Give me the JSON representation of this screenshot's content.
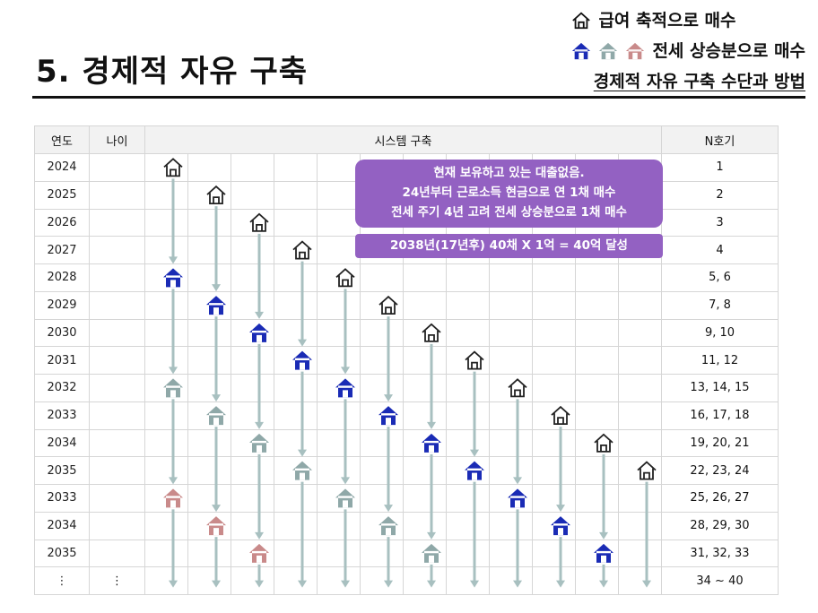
{
  "page": {
    "title": "5. 경제적 자유 구축",
    "legend": {
      "gift_label": "급여 축적으로 매수",
      "jeonse_label": "전세 상승분으로 매수",
      "subtitle": "경제적 자유 구축 수단과 방법"
    }
  },
  "colors": {
    "gift": "#ffffff",
    "jeonse_blue": "#1a2bb5",
    "jeonse_gray": "#8fa8a8",
    "jeonse_pink": "#c98a8a",
    "arrow": "#a8c0c0",
    "callout": "#9361c2"
  },
  "table": {
    "headers": {
      "year": "연도",
      "age": "나이",
      "system": "시스템 구축",
      "count": "N호기"
    },
    "rows": [
      {
        "year": "2024",
        "age": "",
        "count": "1"
      },
      {
        "year": "2025",
        "age": "",
        "count": "2"
      },
      {
        "year": "2026",
        "age": "",
        "count": "3"
      },
      {
        "year": "2027",
        "age": "",
        "count": "4"
      },
      {
        "year": "2028",
        "age": "",
        "count": "5, 6"
      },
      {
        "year": "2029",
        "age": "",
        "count": "7, 8"
      },
      {
        "year": "2030",
        "age": "",
        "count": "9, 10"
      },
      {
        "year": "2031",
        "age": "",
        "count": "11, 12"
      },
      {
        "year": "2032",
        "age": "",
        "count": "13, 14, 15"
      },
      {
        "year": "2033",
        "age": "",
        "count": "16, 17, 18"
      },
      {
        "year": "2034",
        "age": "",
        "count": "19, 20, 21"
      },
      {
        "year": "2035",
        "age": "",
        "count": "22, 23, 24"
      },
      {
        "year": "2033",
        "age": "",
        "count": "25, 26, 27"
      },
      {
        "year": "2034",
        "age": "",
        "count": "28, 29, 30"
      },
      {
        "year": "2035",
        "age": "",
        "count": "31, 32, 33"
      },
      {
        "year": "⋮",
        "age": "⋮",
        "count": "34 ~ 40"
      }
    ]
  },
  "callout": {
    "line1": "현재 보유하고 있는 대출없음.",
    "line2": "24년부터 근로소득 현금으로 연 1채 매수",
    "line3": "전세 주기 4년 고려 전세 상승분으로 1채 매수",
    "goal": "2038년(17년후) 40채 X 1억 = 40억 달성"
  },
  "houses": [
    {
      "row": 0,
      "col": 0,
      "type": "gift"
    },
    {
      "row": 1,
      "col": 1,
      "type": "gift"
    },
    {
      "row": 2,
      "col": 2,
      "type": "gift"
    },
    {
      "row": 3,
      "col": 3,
      "type": "gift"
    },
    {
      "row": 4,
      "col": 0,
      "type": "blue"
    },
    {
      "row": 4,
      "col": 4,
      "type": "gift"
    },
    {
      "row": 5,
      "col": 1,
      "type": "blue"
    },
    {
      "row": 5,
      "col": 5,
      "type": "gift"
    },
    {
      "row": 6,
      "col": 2,
      "type": "blue"
    },
    {
      "row": 6,
      "col": 6,
      "type": "gift"
    },
    {
      "row": 7,
      "col": 3,
      "type": "blue"
    },
    {
      "row": 7,
      "col": 7,
      "type": "gift"
    },
    {
      "row": 8,
      "col": 0,
      "type": "gray"
    },
    {
      "row": 8,
      "col": 4,
      "type": "blue"
    },
    {
      "row": 8,
      "col": 8,
      "type": "gift"
    },
    {
      "row": 9,
      "col": 1,
      "type": "gray"
    },
    {
      "row": 9,
      "col": 5,
      "type": "blue"
    },
    {
      "row": 9,
      "col": 9,
      "type": "gift"
    },
    {
      "row": 10,
      "col": 2,
      "type": "gray"
    },
    {
      "row": 10,
      "col": 6,
      "type": "blue"
    },
    {
      "row": 10,
      "col": 10,
      "type": "gift"
    },
    {
      "row": 11,
      "col": 3,
      "type": "gray"
    },
    {
      "row": 11,
      "col": 7,
      "type": "blue"
    },
    {
      "row": 11,
      "col": 11,
      "type": "gift"
    },
    {
      "row": 12,
      "col": 0,
      "type": "pink"
    },
    {
      "row": 12,
      "col": 4,
      "type": "gray"
    },
    {
      "row": 12,
      "col": 8,
      "type": "blue"
    },
    {
      "row": 13,
      "col": 1,
      "type": "pink"
    },
    {
      "row": 13,
      "col": 5,
      "type": "gray"
    },
    {
      "row": 13,
      "col": 9,
      "type": "blue"
    },
    {
      "row": 14,
      "col": 2,
      "type": "pink"
    },
    {
      "row": 14,
      "col": 6,
      "type": "gray"
    },
    {
      "row": 14,
      "col": 10,
      "type": "blue"
    }
  ]
}
